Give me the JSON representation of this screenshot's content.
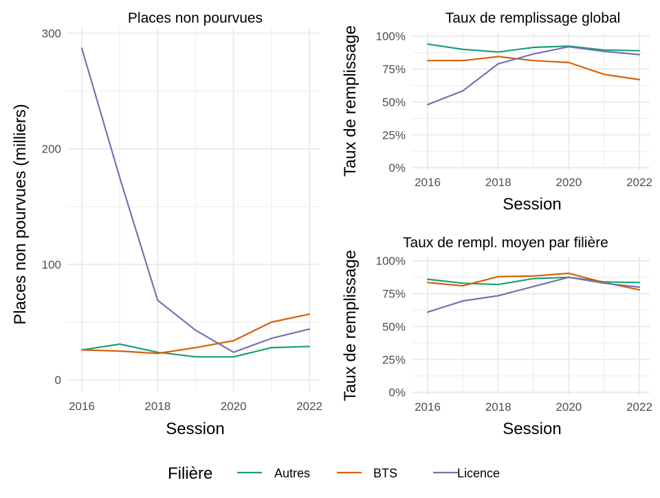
{
  "chart_data": [
    {
      "id": "places",
      "type": "line",
      "title": "Places non pourvues",
      "xlabel": "Session",
      "ylabel": "Places non pourvues (milliers)",
      "x": [
        2016,
        2017,
        2018,
        2019,
        2020,
        2021,
        2022
      ],
      "xticks": [
        2016,
        2018,
        2020,
        2022
      ],
      "xlim": [
        2016,
        2022
      ],
      "ylim": [
        -10,
        305
      ],
      "yticks": [
        0,
        100,
        200,
        300
      ],
      "yticklabels": [
        "0",
        "100",
        "200",
        "300"
      ],
      "series": [
        {
          "name": "Autres",
          "values": [
            26,
            31,
            24,
            20,
            20,
            28,
            29
          ]
        },
        {
          "name": "BTS",
          "values": [
            26,
            25,
            23,
            28,
            34,
            50,
            57
          ]
        },
        {
          "name": "Licence",
          "values": [
            287,
            175,
            69,
            43,
            24,
            36,
            44
          ]
        }
      ]
    },
    {
      "id": "global",
      "type": "line",
      "title": "Taux de remplissage global",
      "xlabel": "Session",
      "ylabel": "Taux de remplissage",
      "x": [
        2016,
        2017,
        2018,
        2019,
        2020,
        2021,
        2022
      ],
      "xticks": [
        2016,
        2018,
        2020,
        2022
      ],
      "xlim": [
        2016,
        2022
      ],
      "ylim": [
        -0.02,
        1.03
      ],
      "yticks": [
        0,
        0.25,
        0.5,
        0.75,
        1.0
      ],
      "yticklabels": [
        "0%",
        "25%",
        "50%",
        "75%",
        "100%"
      ],
      "series": [
        {
          "name": "Autres",
          "values": [
            0.94,
            0.9,
            0.88,
            0.915,
            0.925,
            0.895,
            0.89
          ]
        },
        {
          "name": "BTS",
          "values": [
            0.815,
            0.815,
            0.845,
            0.815,
            0.8,
            0.71,
            0.67
          ]
        },
        {
          "name": "Licence",
          "values": [
            0.48,
            0.585,
            0.79,
            0.865,
            0.92,
            0.885,
            0.86
          ]
        }
      ]
    },
    {
      "id": "moyen",
      "type": "line",
      "title": "Taux de rempl. moyen par filière",
      "xlabel": "Session",
      "ylabel": "Taux de remplissage",
      "x": [
        2016,
        2017,
        2018,
        2019,
        2020,
        2021,
        2022
      ],
      "xticks": [
        2016,
        2018,
        2020,
        2022
      ],
      "xlim": [
        2016,
        2022
      ],
      "ylim": [
        -0.02,
        1.03
      ],
      "yticks": [
        0,
        0.25,
        0.5,
        0.75,
        1.0
      ],
      "yticklabels": [
        "0%",
        "25%",
        "50%",
        "75%",
        "100%"
      ],
      "series": [
        {
          "name": "Autres",
          "values": [
            0.86,
            0.83,
            0.82,
            0.865,
            0.875,
            0.84,
            0.835
          ]
        },
        {
          "name": "BTS",
          "values": [
            0.835,
            0.81,
            0.88,
            0.885,
            0.905,
            0.835,
            0.78
          ]
        },
        {
          "name": "Licence",
          "values": [
            0.61,
            0.695,
            0.735,
            0.805,
            0.875,
            0.83,
            0.8
          ]
        }
      ]
    }
  ],
  "legend": {
    "title": "Filière",
    "position": "bottom",
    "items": [
      {
        "name": "Autres",
        "color": "#1B9E77"
      },
      {
        "name": "BTS",
        "color": "#D95F02"
      },
      {
        "name": "Licence",
        "color": "#7570B3"
      }
    ]
  },
  "colors": {
    "Autres": "#1B9E77",
    "BTS": "#D95F02",
    "Licence": "#7570B3",
    "grid": "#ebebeb"
  },
  "grid": true
}
